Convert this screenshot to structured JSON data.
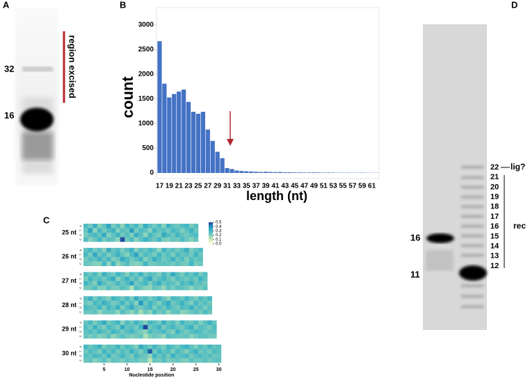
{
  "figure": {
    "panel_labels": [
      "A",
      "B",
      "C",
      "D"
    ]
  },
  "gel_a": {
    "markers": [
      "32",
      "16"
    ],
    "annotation": "region excised"
  },
  "gel_d": {
    "markers": [
      "16",
      "11"
    ],
    "ladder": [
      "22",
      "21",
      "20",
      "19",
      "18",
      "17",
      "16",
      "15",
      "14",
      "13",
      "12"
    ],
    "ligation_label": "lig?",
    "group_label": "rec"
  },
  "chart_data": [
    {
      "type": "bar",
      "xlabel": "length (nt)",
      "ylabel": "count",
      "color": "#4472c4",
      "grid": false,
      "categories": [
        17,
        null,
        19,
        null,
        21,
        null,
        23,
        null,
        25,
        null,
        27,
        null,
        29,
        null,
        31,
        null,
        33,
        null,
        35,
        null,
        37,
        null,
        39,
        null,
        41,
        null,
        43,
        null,
        45,
        null,
        47,
        null,
        49,
        null,
        51,
        null,
        53,
        null,
        55,
        null,
        57,
        null,
        59,
        null,
        61,
        null
      ],
      "values": [
        2670,
        1810,
        1530,
        1600,
        1650,
        1690,
        1440,
        1240,
        1200,
        1240,
        880,
        650,
        430,
        300,
        100,
        80,
        50,
        40,
        35,
        30,
        25,
        20,
        25,
        20,
        18,
        20,
        15,
        15,
        12,
        12,
        10,
        10,
        12,
        10,
        8,
        10,
        8,
        6,
        6,
        6,
        5,
        5,
        6,
        4,
        4,
        4
      ],
      "ylim": [
        0,
        3350
      ],
      "yticks": [
        0,
        500,
        1000,
        1500,
        2000,
        2500,
        3000
      ]
    },
    {
      "type": "heatmap",
      "xlabel": "Nucleotide position",
      "rows": [
        "A",
        "T",
        "G",
        "C"
      ],
      "xlim": [
        0.5,
        30.5
      ],
      "xticks": [
        5,
        10,
        15,
        20,
        25,
        30
      ],
      "clim": [
        0,
        0.5
      ],
      "cticks": [
        {
          "value": 0,
          "label": "0.0"
        },
        0.1,
        0.2,
        0.3,
        0.4,
        0.5
      ],
      "panels": [
        {
          "label": "25 nt",
          "values": [
            [
              0.28,
              0.22,
              0.31,
              0.19,
              0.25,
              0.34,
              0.21,
              0.27,
              0.18,
              0.3,
              0.24,
              0.29,
              0.2,
              0.33,
              0.26,
              0.22,
              0.28,
              0.19,
              0.31,
              0.25,
              0.23,
              0.27,
              0.3,
              0.21,
              0.26
            ],
            [
              0.24,
              0.35,
              0.18,
              0.29,
              0.22,
              0.27,
              0.31,
              0.2,
              0.26,
              0.23,
              0.36,
              0.21,
              0.28,
              0.25,
              0.19,
              0.3,
              0.24,
              0.27,
              0.22,
              0.29,
              0.26,
              0.2,
              0.25,
              0.31,
              0.23
            ],
            [
              0.21,
              0.26,
              0.29,
              0.24,
              0.33,
              0.19,
              0.25,
              0.3,
              0.22,
              0.27,
              0.2,
              0.32,
              0.26,
              0.18,
              0.29,
              0.24,
              0.21,
              0.33,
              0.27,
              0.23,
              0.3,
              0.25,
              0.22,
              0.26,
              0.28
            ],
            [
              0.27,
              0.19,
              0.23,
              0.3,
              0.21,
              0.26,
              0.24,
              0.18,
              0.47,
              0.22,
              0.28,
              0.19,
              0.25,
              0.31,
              0.27,
              0.23,
              0.29,
              0.21,
              0.2,
              0.24,
              0.22,
              0.28,
              0.23,
              0.19,
              0.24
            ]
          ]
        },
        {
          "label": "26 nt",
          "values": [
            [
              0.25,
              0.3,
              0.22,
              0.27,
              0.19,
              0.33,
              0.24,
              0.28,
              0.21,
              0.26,
              0.31,
              0.2,
              0.27,
              0.23,
              0.29,
              0.25,
              0.18,
              0.3,
              0.24,
              0.27,
              0.22,
              0.26,
              0.32,
              0.21,
              0.25,
              0.28
            ],
            [
              0.29,
              0.21,
              0.34,
              0.23,
              0.28,
              0.2,
              0.26,
              0.31,
              0.24,
              0.19,
              0.27,
              0.35,
              0.22,
              0.28,
              0.25,
              0.21,
              0.3,
              0.23,
              0.27,
              0.2,
              0.29,
              0.24,
              0.26,
              0.22,
              0.3,
              0.23
            ],
            [
              0.22,
              0.27,
              0.25,
              0.31,
              0.24,
              0.29,
              0.2,
              0.23,
              0.33,
              0.28,
              0.22,
              0.26,
              0.3,
              0.19,
              0.24,
              0.32,
              0.27,
              0.22,
              0.25,
              0.31,
              0.23,
              0.28,
              0.2,
              0.27,
              0.24,
              0.26
            ],
            [
              0.24,
              0.22,
              0.19,
              0.19,
              0.29,
              0.18,
              0.3,
              0.18,
              0.22,
              0.27,
              0.2,
              0.19,
              0.21,
              0.3,
              0.22,
              0.22,
              0.25,
              0.25,
              0.24,
              0.22,
              0.26,
              0.22,
              0.22,
              0.3,
              0.21,
              0.23
            ]
          ]
        },
        {
          "label": "27 nt",
          "values": [
            [
              0.27,
              0.23,
              0.29,
              0.2,
              0.32,
              0.25,
              0.22,
              0.3,
              0.26,
              0.19,
              0.28,
              0.24,
              0.31,
              0.22,
              0.27,
              0.25,
              0.2,
              0.29,
              0.23,
              0.33,
              0.26,
              0.21,
              0.28,
              0.24,
              0.3,
              0.22,
              0.27
            ],
            [
              0.21,
              0.3,
              0.24,
              0.27,
              0.22,
              0.28,
              0.33,
              0.19,
              0.25,
              0.31,
              0.23,
              0.27,
              0.2,
              0.29,
              0.34,
              0.22,
              0.26,
              0.3,
              0.24,
              0.21,
              0.28,
              0.25,
              0.23,
              0.27,
              0.22,
              0.31,
              0.25
            ],
            [
              0.3,
              0.25,
              0.2,
              0.33,
              0.26,
              0.21,
              0.24,
              0.29,
              0.23,
              0.27,
              0.35,
              0.22,
              0.26,
              0.3,
              0.21,
              0.28,
              0.32,
              0.23,
              0.27,
              0.25,
              0.2,
              0.29,
              0.26,
              0.31,
              0.24,
              0.26,
              0.22
            ],
            [
              0.22,
              0.22,
              0.27,
              0.2,
              0.2,
              0.26,
              0.21,
              0.22,
              0.26,
              0.23,
              0.14,
              0.27,
              0.23,
              0.19,
              0.18,
              0.25,
              0.22,
              0.18,
              0.26,
              0.21,
              0.26,
              0.25,
              0.23,
              0.18,
              0.24,
              0.21,
              0.26
            ]
          ]
        },
        {
          "label": "28 nt",
          "values": [
            [
              0.26,
              0.31,
              0.22,
              0.28,
              0.24,
              0.2,
              0.3,
              0.27,
              0.23,
              0.29,
              0.21,
              0.33,
              0.25,
              0.28,
              0.22,
              0.26,
              0.31,
              0.24,
              0.19,
              0.29,
              0.27,
              0.23,
              0.3,
              0.25,
              0.21,
              0.28,
              0.24,
              0.29
            ],
            [
              0.23,
              0.2,
              0.29,
              0.25,
              0.32,
              0.27,
              0.21,
              0.24,
              0.3,
              0.22,
              0.28,
              0.19,
              0.38,
              0.23,
              0.3,
              0.25,
              0.2,
              0.28,
              0.33,
              0.22,
              0.26,
              0.31,
              0.24,
              0.2,
              0.29,
              0.23,
              0.27,
              0.22
            ],
            [
              0.28,
              0.26,
              0.24,
              0.3,
              0.21,
              0.29,
              0.25,
              0.31,
              0.2,
              0.27,
              0.33,
              0.24,
              0.22,
              0.26,
              0.29,
              0.21,
              0.27,
              0.23,
              0.3,
              0.25,
              0.22,
              0.28,
              0.26,
              0.32,
              0.24,
              0.27,
              0.21,
              0.26
            ],
            [
              0.23,
              0.23,
              0.25,
              0.17,
              0.23,
              0.24,
              0.24,
              0.18,
              0.27,
              0.22,
              0.18,
              0.24,
              0.15,
              0.23,
              0.19,
              0.28,
              0.22,
              0.25,
              0.18,
              0.24,
              0.25,
              0.18,
              0.2,
              0.23,
              0.26,
              0.22,
              0.28,
              0.23
            ]
          ]
        },
        {
          "label": "29 nt",
          "values": [
            [
              0.24,
              0.29,
              0.21,
              0.27,
              0.33,
              0.22,
              0.26,
              0.3,
              0.19,
              0.28,
              0.23,
              0.31,
              0.25,
              0.2,
              0.29,
              0.26,
              0.22,
              0.32,
              0.24,
              0.27,
              0.21,
              0.3,
              0.25,
              0.23,
              0.28,
              0.2,
              0.26,
              0.31,
              0.24
            ],
            [
              0.27,
              0.22,
              0.31,
              0.24,
              0.2,
              0.29,
              0.25,
              0.21,
              0.33,
              0.24,
              0.27,
              0.22,
              0.3,
              0.48,
              0.23,
              0.27,
              0.31,
              0.21,
              0.26,
              0.29,
              0.24,
              0.22,
              0.28,
              0.32,
              0.21,
              0.27,
              0.25,
              0.22,
              0.28
            ],
            [
              0.25,
              0.28,
              0.24,
              0.3,
              0.26,
              0.23,
              0.31,
              0.27,
              0.22,
              0.26,
              0.3,
              0.25,
              0.21,
              0.18,
              0.28,
              0.24,
              0.26,
              0.29,
              0.23,
              0.2,
              0.31,
              0.25,
              0.22,
              0.26,
              0.29,
              0.27,
              0.23,
              0.25,
              0.26
            ],
            [
              0.24,
              0.21,
              0.24,
              0.19,
              0.21,
              0.26,
              0.18,
              0.22,
              0.26,
              0.22,
              0.2,
              0.22,
              0.24,
              0.14,
              0.2,
              0.23,
              0.21,
              0.18,
              0.27,
              0.24,
              0.24,
              0.23,
              0.25,
              0.19,
              0.22,
              0.26,
              0.26,
              0.22,
              0.22
            ]
          ]
        },
        {
          "label": "30 nt",
          "values": [
            [
              0.29,
              0.23,
              0.27,
              0.31,
              0.21,
              0.26,
              0.24,
              0.3,
              0.22,
              0.28,
              0.25,
              0.2,
              0.33,
              0.27,
              0.23,
              0.29,
              0.24,
              0.21,
              0.3,
              0.26,
              0.22,
              0.28,
              0.31,
              0.25,
              0.2,
              0.27,
              0.23,
              0.29,
              0.24,
              0.26
            ],
            [
              0.22,
              0.28,
              0.25,
              0.2,
              0.3,
              0.24,
              0.29,
              0.22,
              0.27,
              0.23,
              0.31,
              0.26,
              0.21,
              0.28,
              0.45,
              0.22,
              0.3,
              0.25,
              0.27,
              0.21,
              0.29,
              0.24,
              0.2,
              0.27,
              0.31,
              0.23,
              0.26,
              0.22,
              0.28,
              0.25
            ],
            [
              0.26,
              0.24,
              0.29,
              0.27,
              0.23,
              0.31,
              0.22,
              0.25,
              0.3,
              0.24,
              0.21,
              0.29,
              0.25,
              0.23,
              0.18,
              0.3,
              0.24,
              0.28,
              0.22,
              0.31,
              0.25,
              0.27,
              0.29,
              0.22,
              0.26,
              0.28,
              0.25,
              0.27,
              0.23,
              0.24
            ],
            [
              0.23,
              0.25,
              0.19,
              0.22,
              0.26,
              0.19,
              0.25,
              0.23,
              0.21,
              0.25,
              0.23,
              0.25,
              0.21,
              0.22,
              0.12,
              0.24,
              0.22,
              0.26,
              0.21,
              0.22,
              0.24,
              0.21,
              0.2,
              0.26,
              0.23,
              0.22,
              0.26,
              0.22,
              0.25,
              0.25
            ]
          ]
        }
      ]
    }
  ]
}
